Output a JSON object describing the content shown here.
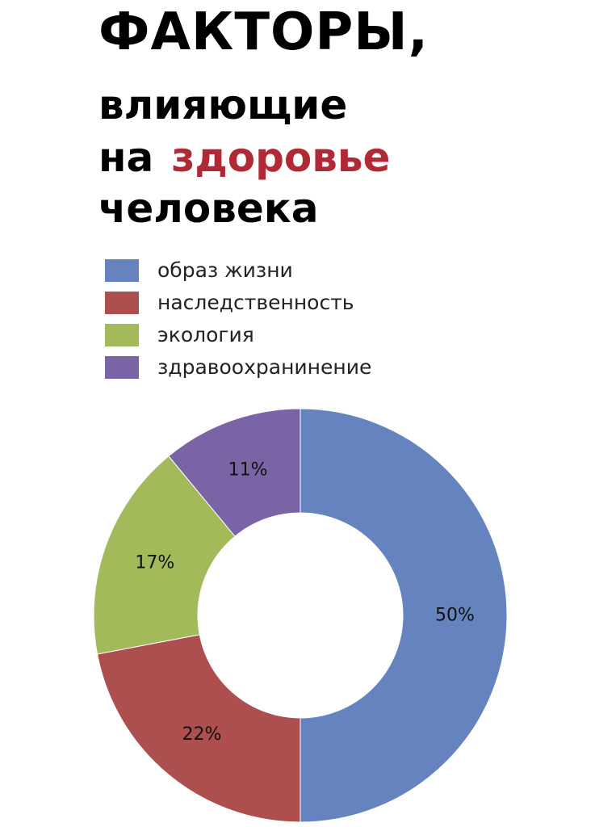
{
  "title": {
    "line1": "ФАКТОРЫ,",
    "line2": "влияющие",
    "line3_prefix": "на",
    "line3_accent": "здоровье",
    "line4": "человека"
  },
  "colors": {
    "accent": "#b02a36",
    "text": "#000000"
  },
  "chart_data": {
    "type": "pie",
    "donut": true,
    "title": "ФАКТОРЫ, влияющие на здоровье человека",
    "legend_placement": "top",
    "labels": [
      "образ жизни",
      "наследственность",
      "экология",
      "здравоохранинение"
    ],
    "values": [
      50,
      22,
      17,
      11
    ],
    "value_labels": [
      "50%",
      "22%",
      "17%",
      "11%"
    ],
    "colors": [
      "#6483bf",
      "#ad4f4e",
      "#a3ba5b",
      "#7b64a6"
    ]
  }
}
